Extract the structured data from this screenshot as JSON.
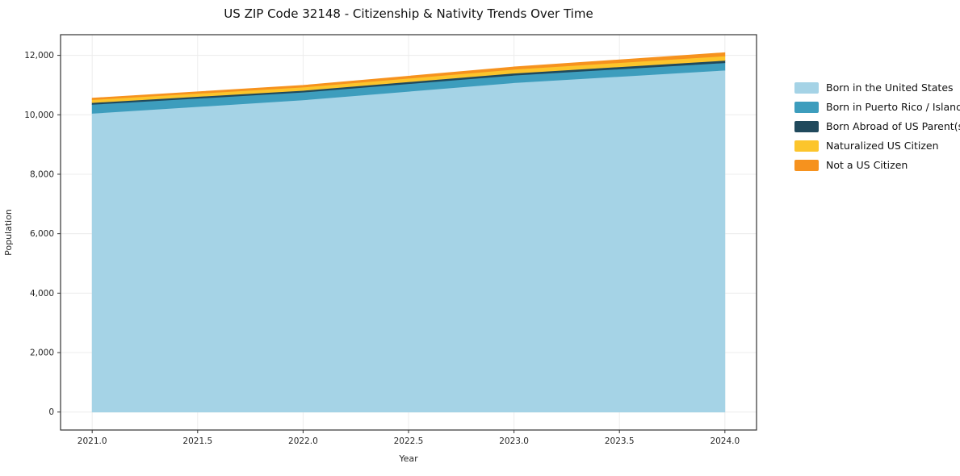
{
  "title": "US ZIP Code 32148 - Citizenship & Nativity Trends Over Time",
  "chart_data": {
    "type": "area",
    "stacked": true,
    "title": "US ZIP Code 32148 - Citizenship & Nativity Trends Over Time",
    "xlabel": "Year",
    "ylabel": "Population",
    "x": [
      2021,
      2022,
      2023,
      2024
    ],
    "xticks": [
      2021.0,
      2021.5,
      2022.0,
      2022.5,
      2023.0,
      2023.5,
      2024.0
    ],
    "ylim": [
      0,
      12000
    ],
    "ytick_step": 2000,
    "grid": true,
    "legend_position": "right",
    "series": [
      {
        "name": "Born in the United States",
        "color": "#a5d3e6",
        "values": [
          10050,
          10500,
          11080,
          11500
        ]
      },
      {
        "name": "Born in Puerto Rico / Islands",
        "color": "#3d9dbd",
        "values": [
          300,
          260,
          250,
          250
        ]
      },
      {
        "name": "Born Abroad of US Parent(s)",
        "color": "#20495c",
        "values": [
          60,
          60,
          70,
          80
        ]
      },
      {
        "name": "Naturalized US Citizen",
        "color": "#fcc52c",
        "values": [
          100,
          110,
          130,
          150
        ]
      },
      {
        "name": "Not a US Citizen",
        "color": "#f6921e",
        "values": [
          50,
          60,
          80,
          110
        ]
      }
    ],
    "colors": {
      "spine": "#333333",
      "grid": "#ececec",
      "tick_text": "#262626"
    }
  }
}
